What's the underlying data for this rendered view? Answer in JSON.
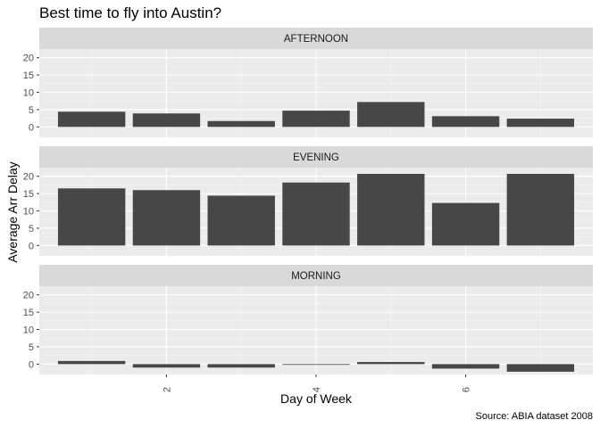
{
  "chart_data": {
    "type": "bar",
    "title": "Best time to fly into Austin?",
    "xlabel": "Day of Week",
    "ylabel": "Average Arr Delay",
    "caption": "Source: ABIA dataset 2008",
    "x": [
      1,
      2,
      3,
      4,
      5,
      6,
      7
    ],
    "x_ticks": [
      2,
      4,
      6
    ],
    "x_tick_labels": [
      "2",
      "4",
      "6"
    ],
    "y_ticks": [
      0,
      5,
      10,
      15,
      20
    ],
    "y_tick_labels": [
      "0",
      "5",
      "10",
      "15",
      "20"
    ],
    "ylim": [
      -3,
      22.5
    ],
    "xlim": [
      0.3,
      7.7
    ],
    "facets": [
      {
        "label": "AFTERNOON",
        "values": [
          4.4,
          3.9,
          1.7,
          4.7,
          7.2,
          3.1,
          2.4
        ]
      },
      {
        "label": "EVENING",
        "values": [
          16.5,
          16.0,
          14.4,
          18.2,
          20.7,
          12.3,
          20.7
        ]
      },
      {
        "label": "MORNING",
        "values": [
          0.9,
          -1.0,
          -1.0,
          -0.2,
          0.6,
          -1.3,
          -2.2
        ]
      }
    ],
    "grid": true,
    "colors": {
      "bar": "#474747",
      "panel": "#ebebeb",
      "strip": "#d9d9d9",
      "grid_major": "#ffffff",
      "grid_minor": "#f5f5f5"
    }
  }
}
